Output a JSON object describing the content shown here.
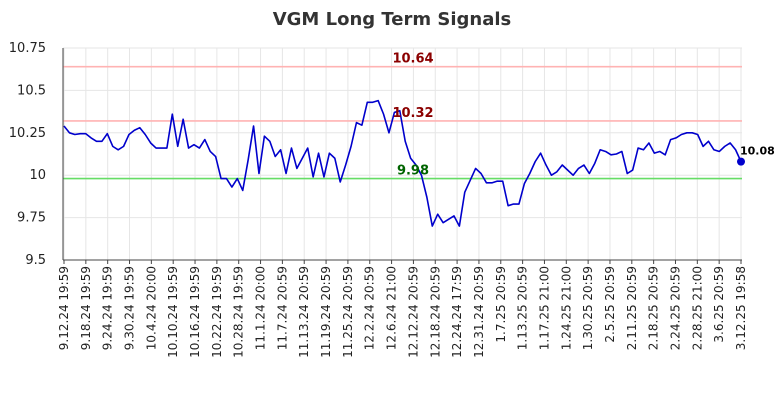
{
  "chart_data": {
    "type": "line",
    "title": "VGM Long Term Signals",
    "xlabel": "",
    "ylabel": "",
    "ylim": [
      9.5,
      10.75
    ],
    "yticks": [
      {
        "value": 9.5,
        "label": "9.5"
      },
      {
        "value": 9.75,
        "label": "9.75"
      },
      {
        "value": 10.0,
        "label": "10"
      },
      {
        "value": 10.25,
        "label": "10.25"
      },
      {
        "value": 10.5,
        "label": "10.5"
      },
      {
        "value": 10.75,
        "label": "10.75"
      }
    ],
    "grid": true,
    "x_tick_labels": [
      "9.12.24 19:59",
      "9.18.24 19:59",
      "9.24.24 19:59",
      "9.30.24 19:59",
      "10.4.24 20:00",
      "10.10.24 19:59",
      "10.16.24 19:59",
      "10.22.24 19:59",
      "10.28.24 19:59",
      "11.1.24 20:00",
      "11.7.24 20:59",
      "11.13.24 20:59",
      "11.19.24 20:59",
      "11.25.24 20:59",
      "12.2.24 20:59",
      "12.6.24 21:00",
      "12.12.24 20:59",
      "12.18.24 20:59",
      "12.24.24 17:59",
      "12.31.24 20:59",
      "1.7.25 20:59",
      "1.13.25 20:59",
      "1.17.25 21:00",
      "1.24.25 21:00",
      "1.30.25 20:59",
      "2.5.25 20:59",
      "2.11.25 20:59",
      "2.18.25 20:59",
      "2.24.25 20:59",
      "2.28.25 21:00",
      "3.6.25 20:59",
      "3.12.25 19:58"
    ],
    "series": [
      {
        "name": "",
        "color": "#0000cc",
        "values": [
          10.29,
          10.25,
          10.24,
          10.245,
          10.245,
          10.22,
          10.2,
          10.2,
          10.245,
          10.17,
          10.15,
          10.17,
          10.24,
          10.265,
          10.28,
          10.24,
          10.19,
          10.16,
          10.16,
          10.16,
          10.36,
          10.17,
          10.33,
          10.16,
          10.18,
          10.16,
          10.21,
          10.14,
          10.11,
          9.98,
          9.98,
          9.93,
          9.98,
          9.91,
          10.09,
          10.29,
          10.01,
          10.23,
          10.2,
          10.11,
          10.15,
          10.01,
          10.16,
          10.04,
          10.1,
          10.16,
          9.99,
          10.13,
          9.99,
          10.13,
          10.1,
          9.96,
          10.06,
          10.17,
          10.31,
          10.295,
          10.43,
          10.43,
          10.44,
          10.36,
          10.25,
          10.37,
          10.38,
          10.2,
          10.1,
          10.06,
          10.0,
          9.87,
          9.7,
          9.77,
          9.72,
          9.74,
          9.76,
          9.7,
          9.9,
          9.97,
          10.04,
          10.01,
          9.955,
          9.955,
          9.965,
          9.965,
          9.82,
          9.83,
          9.83,
          9.95,
          10.01,
          10.08,
          10.13,
          10.06,
          10.0,
          10.02,
          10.06,
          10.03,
          10.0,
          10.04,
          10.06,
          10.01,
          10.07,
          10.15,
          10.14,
          10.12,
          10.125,
          10.14,
          10.01,
          10.03,
          10.16,
          10.15,
          10.19,
          10.13,
          10.14,
          10.12,
          10.21,
          10.22,
          10.24,
          10.25,
          10.25,
          10.24,
          10.17,
          10.2,
          10.15,
          10.14,
          10.17,
          10.19,
          10.15,
          10.08
        ],
        "last_value_label": "10.08"
      }
    ],
    "reference_lines": [
      {
        "value": 10.64,
        "label": "10.64",
        "line_color": "#ffb3b3",
        "label_color": "#8b0000"
      },
      {
        "value": 10.32,
        "label": "10.32",
        "line_color": "#ffb3b3",
        "label_color": "#8b0000"
      },
      {
        "value": 9.98,
        "label": "9.98",
        "line_color": "#66dd66",
        "label_color": "#006400"
      }
    ]
  }
}
